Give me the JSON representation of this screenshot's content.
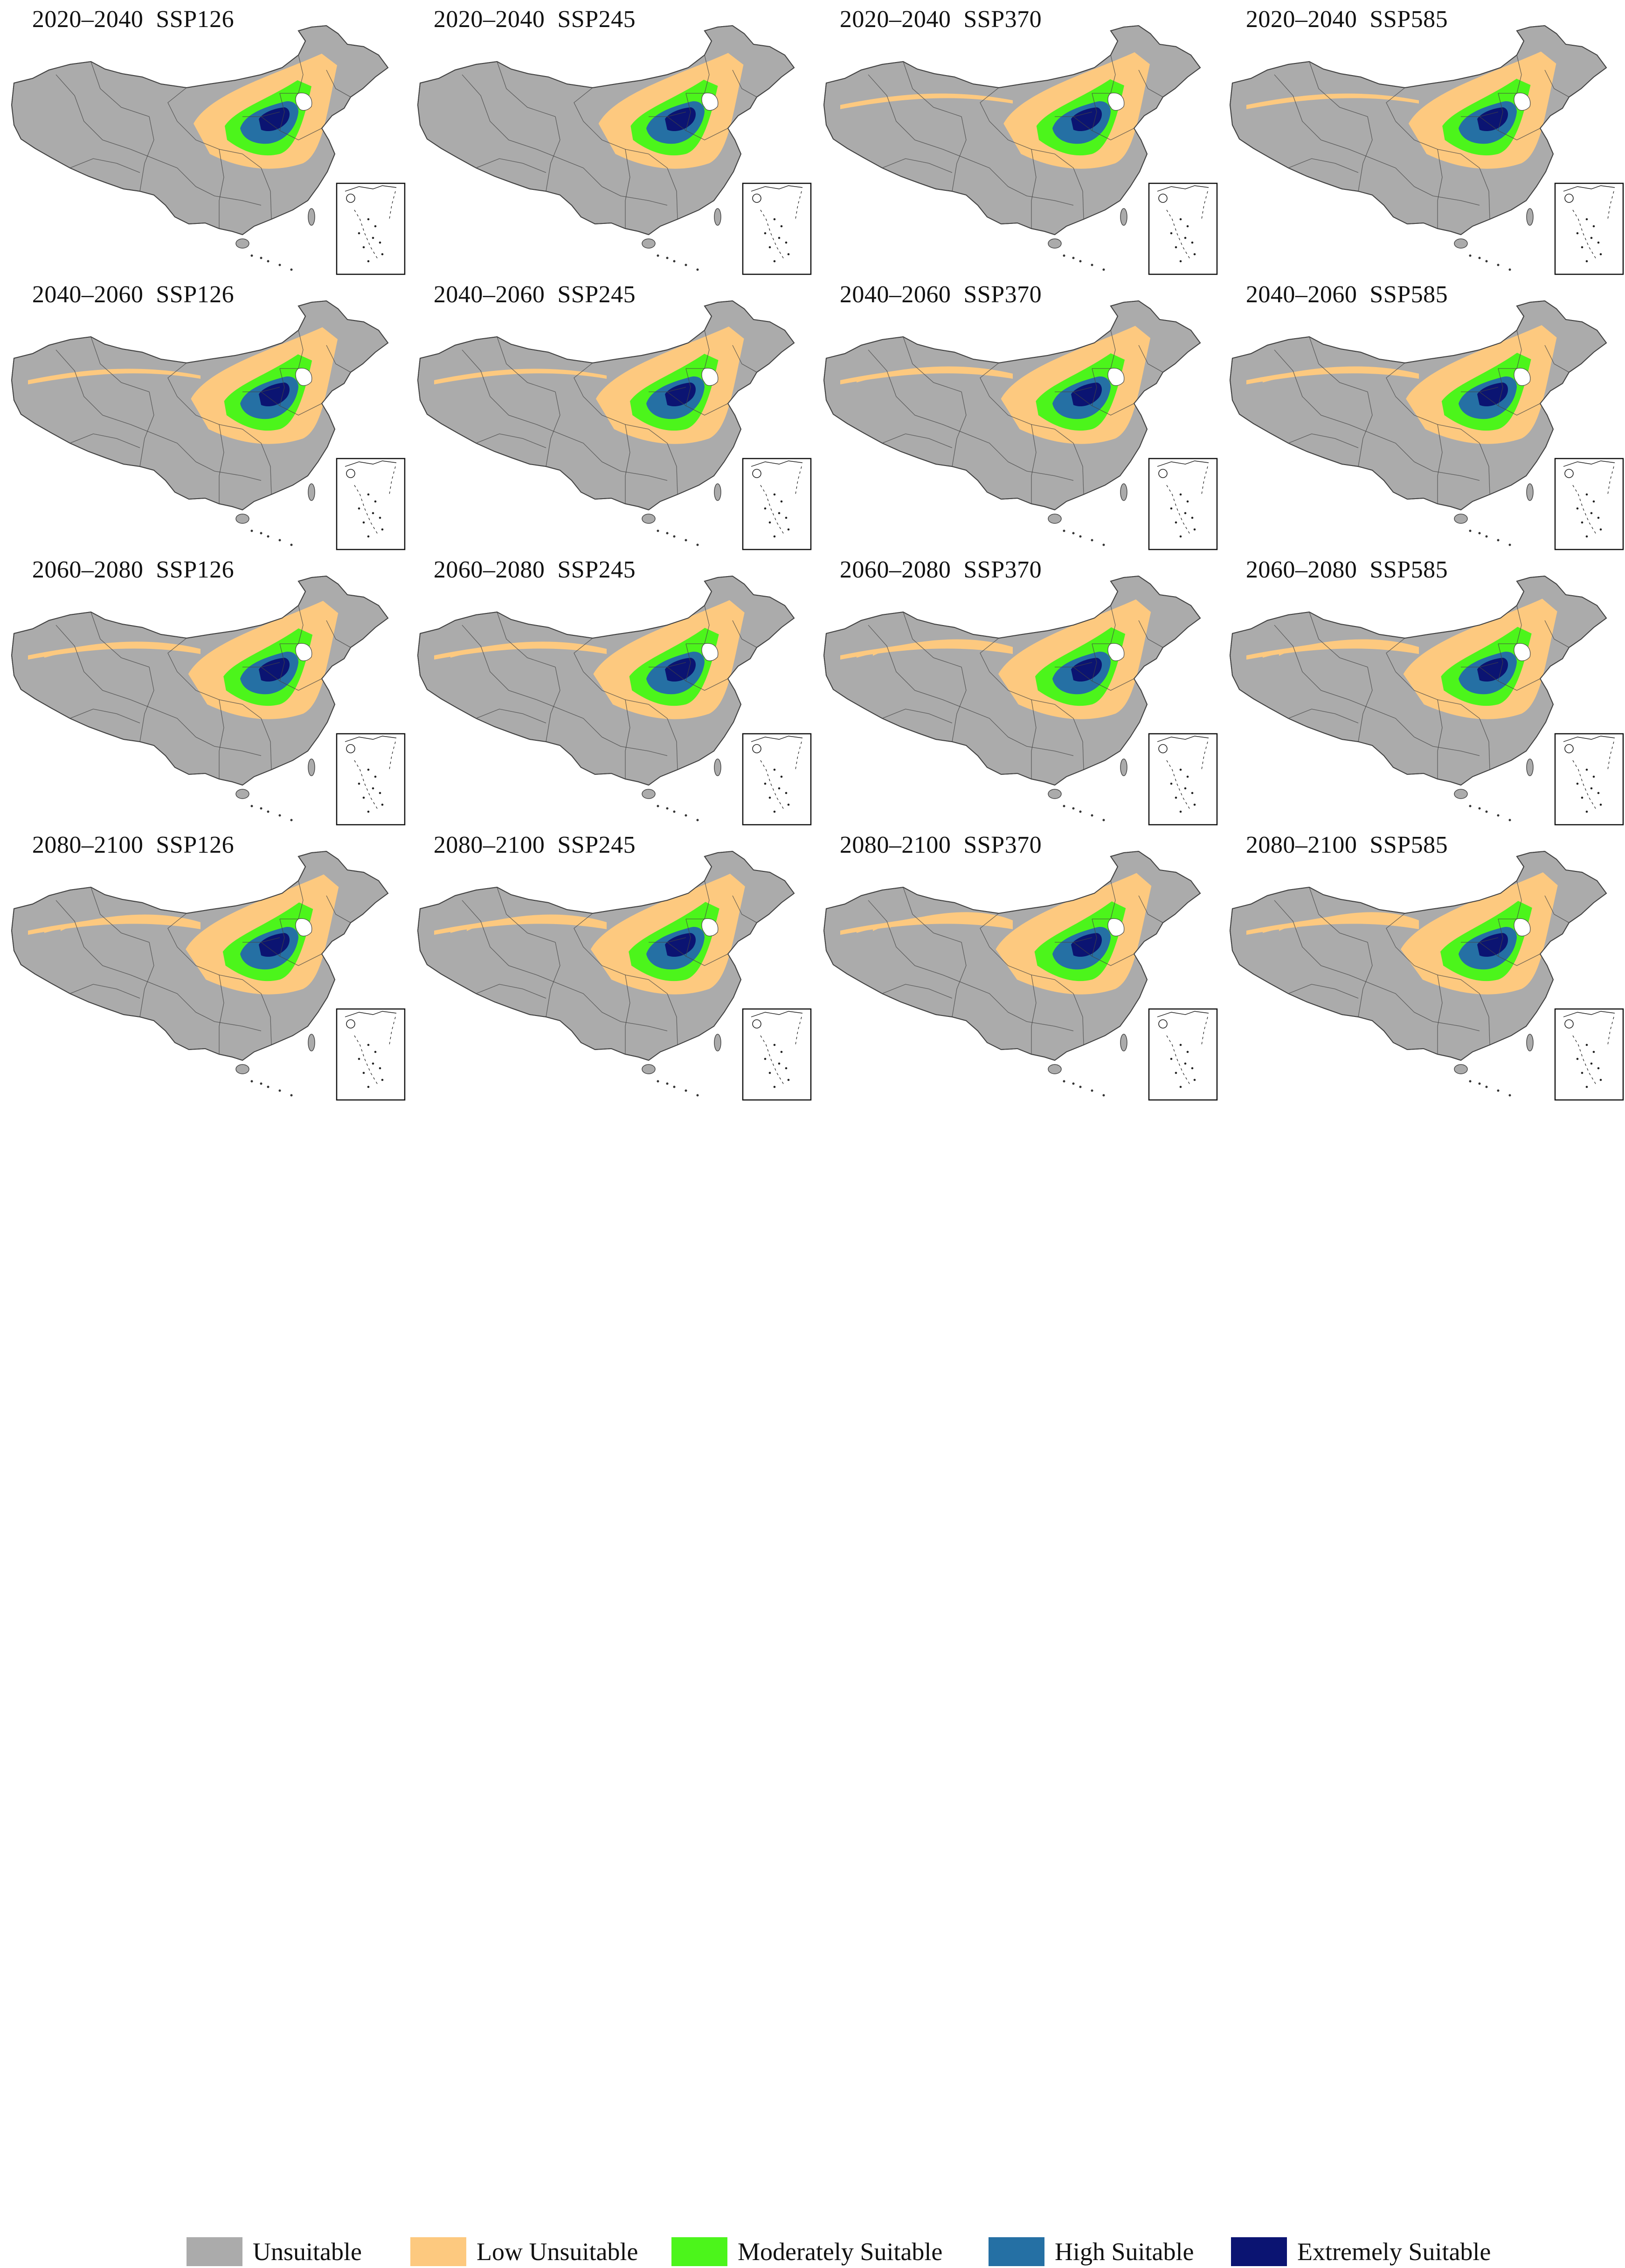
{
  "periods": [
    "2020–2040",
    "2040–2060",
    "2060–2080",
    "2080–2100"
  ],
  "scenarios": [
    "SSP126",
    "SSP245",
    "SSP370",
    "SSP585"
  ],
  "panels": [
    {
      "period": "2020–2040",
      "scenario": "SSP126",
      "title": "2020–2040  SSP126"
    },
    {
      "period": "2020–2040",
      "scenario": "SSP245",
      "title": "2020–2040  SSP245"
    },
    {
      "period": "2020–2040",
      "scenario": "SSP370",
      "title": "2020–2040  SSP370"
    },
    {
      "period": "2020–2040",
      "scenario": "SSP585",
      "title": "2020–2040  SSP585"
    },
    {
      "period": "2040–2060",
      "scenario": "SSP126",
      "title": "2040–2060  SSP126"
    },
    {
      "period": "2040–2060",
      "scenario": "SSP245",
      "title": "2040–2060  SSP245"
    },
    {
      "period": "2040–2060",
      "scenario": "SSP370",
      "title": "2040–2060  SSP370"
    },
    {
      "period": "2040–2060",
      "scenario": "SSP585",
      "title": "2040–2060  SSP585"
    },
    {
      "period": "2060–2080",
      "scenario": "SSP126",
      "title": "2060–2080  SSP126"
    },
    {
      "period": "2060–2080",
      "scenario": "SSP245",
      "title": "2060–2080  SSP245"
    },
    {
      "period": "2060–2080",
      "scenario": "SSP370",
      "title": "2060–2080  SSP370"
    },
    {
      "period": "2060–2080",
      "scenario": "SSP585",
      "title": "2060–2080  SSP585"
    },
    {
      "period": "2080–2100",
      "scenario": "SSP126",
      "title": "2080–2100  SSP126"
    },
    {
      "period": "2080–2100",
      "scenario": "SSP245",
      "title": "2080–2100  SSP245"
    },
    {
      "period": "2080–2100",
      "scenario": "SSP370",
      "title": "2080–2100  SSP370"
    },
    {
      "period": "2080–2100",
      "scenario": "SSP585",
      "title": "2080–2100  SSP585"
    }
  ],
  "legend": [
    {
      "label": "Unsuitable",
      "color": "#ababab"
    },
    {
      "label": "Low Unsuitable",
      "color": "#fdc97f"
    },
    {
      "label": "Moderately Suitable",
      "color": "#4cf51b"
    },
    {
      "label": "High Suitable",
      "color": "#2570a4"
    },
    {
      "label": "Extremely Suitable",
      "color": "#0b1472"
    }
  ],
  "colors": {
    "unsuitable": "#ababab",
    "low": "#fdc97f",
    "moderate": "#4cf51b",
    "high": "#2570a4",
    "extreme": "#0b1472",
    "border": "#444444",
    "background": "#ffffff"
  }
}
